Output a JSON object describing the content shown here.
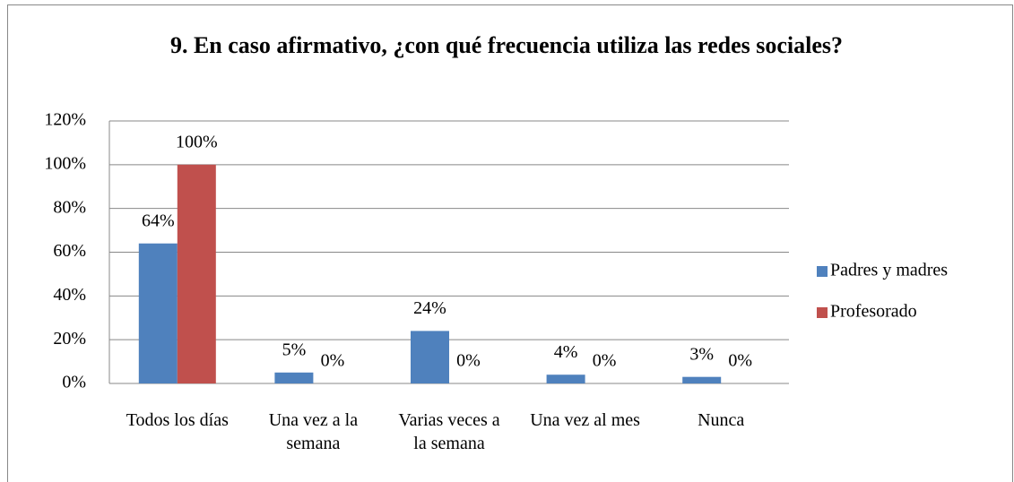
{
  "chart_data": {
    "type": "bar",
    "title": "9. En caso afirmativo, ¿con qué frecuencia utiliza las redes sociales?",
    "categories": [
      "Todos los días",
      "Una vez a la semana",
      "Varias veces a la semana",
      "Una vez al mes",
      "Nunca"
    ],
    "series": [
      {
        "name": "Padres y madres",
        "color": "#4f81bd",
        "values": [
          64,
          5,
          24,
          4,
          3
        ],
        "value_labels": [
          "64%",
          "5%",
          "24%",
          "4%",
          "3%"
        ]
      },
      {
        "name": "Profesorado",
        "color": "#c0504d",
        "values": [
          100,
          0,
          0,
          0,
          0
        ],
        "value_labels": [
          "100%",
          "0%",
          "0%",
          "0%",
          "0%"
        ]
      }
    ],
    "ylim": [
      0,
      120
    ],
    "yticks": [
      {
        "value": 0,
        "label": "0%"
      },
      {
        "value": 20,
        "label": "20%"
      },
      {
        "value": 40,
        "label": "40%"
      },
      {
        "value": 60,
        "label": "60%"
      },
      {
        "value": 80,
        "label": "80%"
      },
      {
        "value": 100,
        "label": "100%"
      },
      {
        "value": 120,
        "label": "120%"
      }
    ],
    "grid": true,
    "legend": "right"
  }
}
